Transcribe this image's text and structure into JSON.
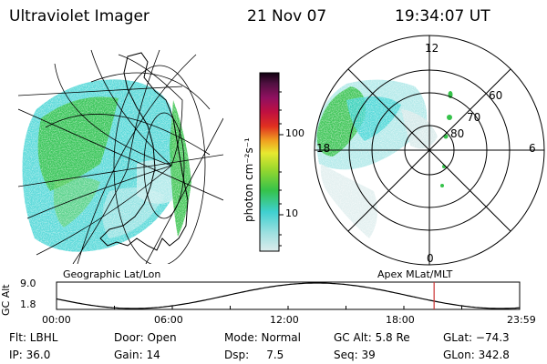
{
  "header": {
    "title": "Ultraviolet Imager",
    "date": "21 Nov 07",
    "time": "19:34:07 UT"
  },
  "colorbar": {
    "unit_label": "photon cm⁻²s⁻¹",
    "ticks": [
      "100",
      "10"
    ]
  },
  "geo_panel": {
    "caption": "Geographic Lat/Lon"
  },
  "polar_panel": {
    "caption": "Apex MLat/MLT",
    "mlt_labels": {
      "top": "12",
      "left": "18",
      "right": "6",
      "bottom": "0"
    },
    "lat_labels": [
      "60",
      "70",
      "80"
    ]
  },
  "altitude_strip": {
    "axis_label": "GC Alt",
    "y_ticks": [
      "9.0",
      "1.8"
    ],
    "time_ticks": [
      "00:00",
      "06:00",
      "12:00",
      "18:00",
      "23:59"
    ],
    "current_time_marker": "19:34"
  },
  "info": {
    "filter": "Flt: LBHL",
    "ip": "IP: 36.0",
    "door": "Door: Open",
    "gain": "Gain: 14",
    "mode": "Mode: Normal",
    "dsp": "Dsp:     7.5",
    "gc_alt": "GC Alt: 5.8 Re",
    "seq": "Seq: 39",
    "glat": "GLat: −74.3",
    "glon": "GLon: 342.8"
  },
  "colors": {
    "green": "#35c24a",
    "cyan": "#3fd4d4",
    "light_cyan": "#a8e6e6",
    "marker": "#cc3333"
  }
}
